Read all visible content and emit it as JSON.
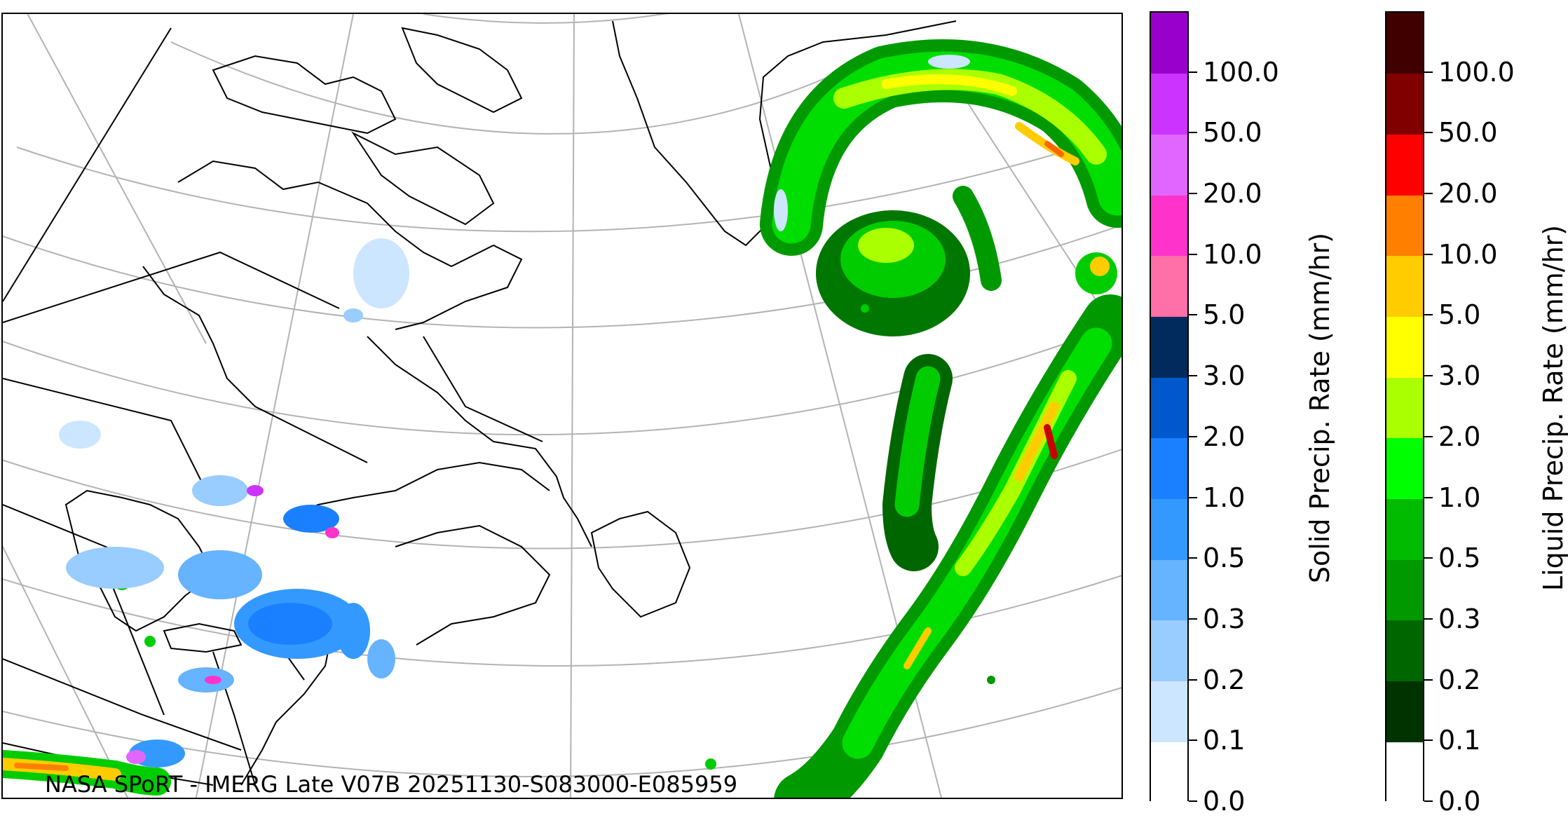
{
  "credit": "NASA SPoRT - IMERG Late V07B 20251130-S083000-E085959",
  "solid_colorbar": {
    "title": "Solid Precip. Rate (mm/hr)",
    "ticks": [
      "0.0",
      "0.1",
      "0.2",
      "0.3",
      "0.5",
      "1.0",
      "2.0",
      "3.0",
      "5.0",
      "10.0",
      "20.0",
      "50.0",
      "100.0"
    ],
    "colors": [
      "#ffffff",
      "#cce6ff",
      "#99ccff",
      "#66b3ff",
      "#3399ff",
      "#1a80ff",
      "#0059cc",
      "#002b5c",
      "#ff6fa8",
      "#ff33cc",
      "#e066ff",
      "#cc33ff",
      "#9900cc"
    ]
  },
  "liquid_colorbar": {
    "title": "Liquid Precip. Rate (mm/hr)",
    "ticks": [
      "0.0",
      "0.1",
      "0.2",
      "0.3",
      "0.5",
      "1.0",
      "2.0",
      "3.0",
      "5.0",
      "10.0",
      "20.0",
      "50.0",
      "100.0"
    ],
    "colors": [
      "#ffffff",
      "#003300",
      "#006600",
      "#009900",
      "#00bb00",
      "#00ff00",
      "#aaff00",
      "#ffff00",
      "#ffcc00",
      "#ff8000",
      "#ff0000",
      "#800000",
      "#400000"
    ]
  }
}
